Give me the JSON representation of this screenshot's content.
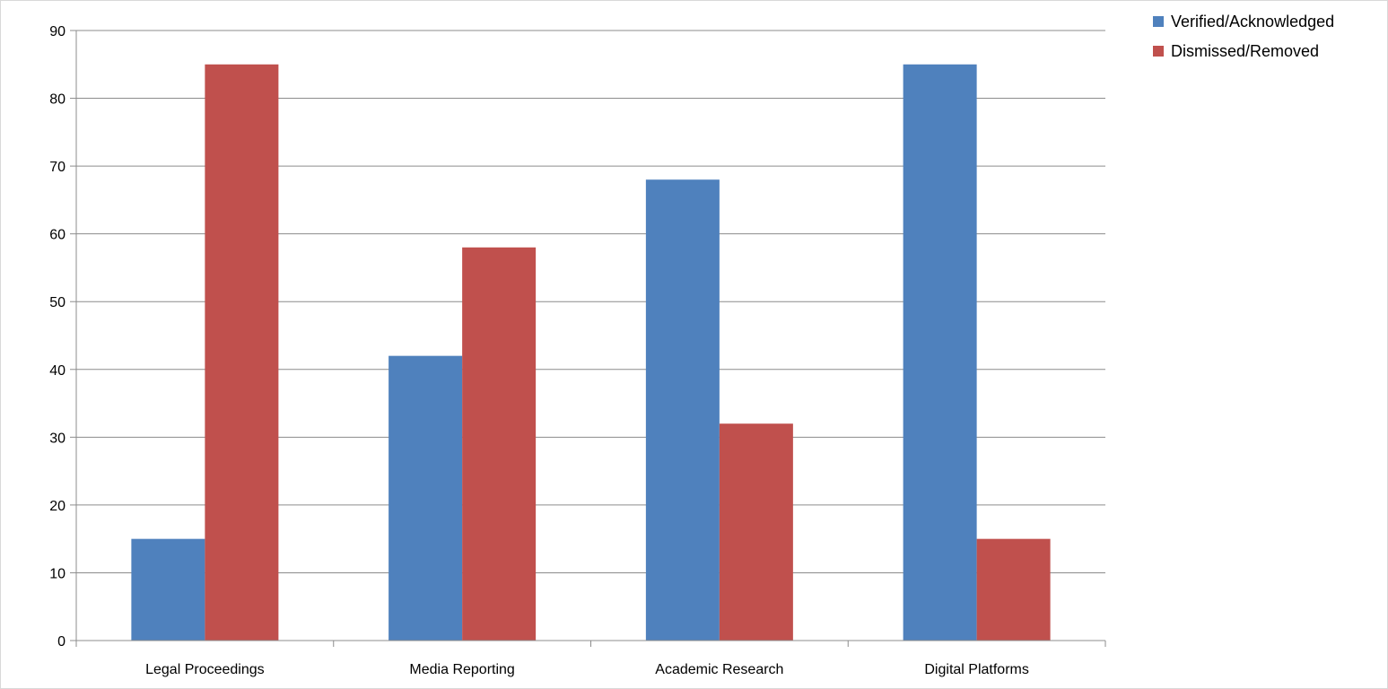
{
  "chart_data": {
    "type": "bar",
    "title": "",
    "xlabel": "",
    "ylabel": "",
    "categories": [
      "Legal Proceedings",
      "Media Reporting",
      "Academic Research",
      "Digital Platforms"
    ],
    "series": [
      {
        "name": "Verified/Acknowledged",
        "color": "#4f81bd",
        "values": [
          15,
          42,
          68,
          85
        ]
      },
      {
        "name": "Dismissed/Removed",
        "color": "#c0504d",
        "values": [
          85,
          58,
          32,
          15
        ]
      }
    ],
    "ylim": [
      0,
      90
    ],
    "yticks": [
      0,
      10,
      20,
      30,
      40,
      50,
      60,
      70,
      80,
      90
    ],
    "grid": true,
    "legend_position": "top-right"
  }
}
